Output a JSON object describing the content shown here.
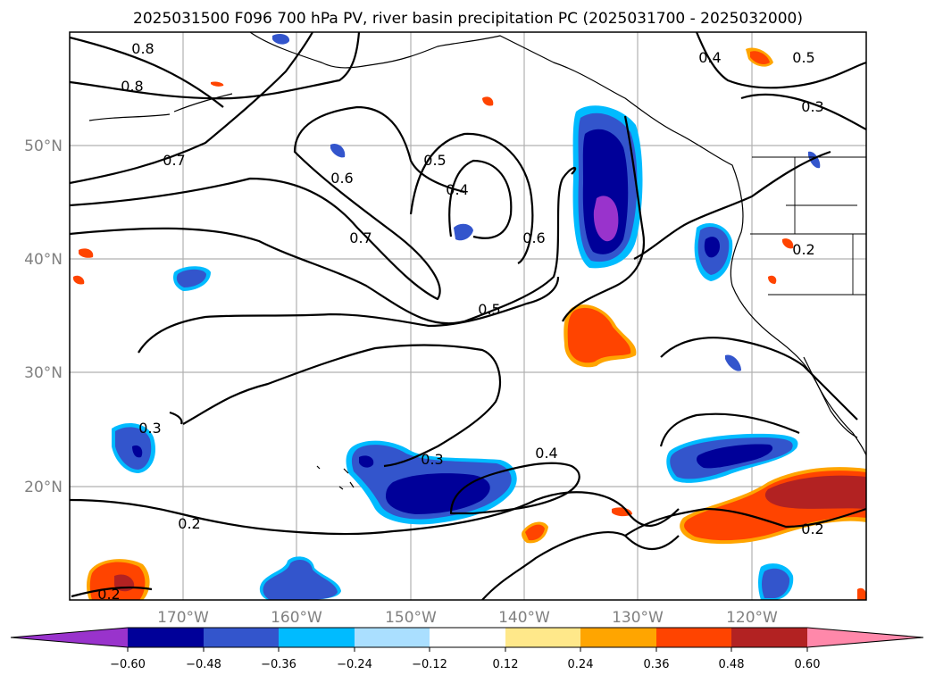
{
  "title": "2025031500 F096 700 hPa PV, river basin precipitation PC (2025031700 - 2025032000)",
  "lat_labels": [
    "50°N",
    "40°N",
    "30°N",
    "20°N"
  ],
  "lon_labels": [
    "170°W",
    "160°W",
    "150°W",
    "140°W",
    "130°W",
    "120°W"
  ],
  "colorbar": {
    "tick_labels": [
      "−0.60",
      "−0.48",
      "−0.36",
      "−0.24",
      "−0.12",
      "0.12",
      "0.24",
      "0.36",
      "0.48",
      "0.60"
    ],
    "colors": [
      "#9933cc",
      "#000099",
      "#3355cc",
      "#00bbff",
      "#aadfff",
      "#ffffff",
      "#ffe88a",
      "#ffa500",
      "#ff4400",
      "#b22222",
      "#ff88aa"
    ]
  },
  "map_data": {
    "extent_lon": [
      -180,
      -110
    ],
    "extent_lat": [
      10,
      60
    ],
    "pv_contour_labels": [
      "0.8",
      "0.8",
      "0.7",
      "0.6",
      "0.7",
      "0.5",
      "0.4",
      "0.6",
      "0.5",
      "0.4",
      "0.5",
      "0.3",
      "0.3",
      "0.2",
      "0.3",
      "0.4",
      "0.2",
      "0.2",
      "0.2"
    ]
  }
}
